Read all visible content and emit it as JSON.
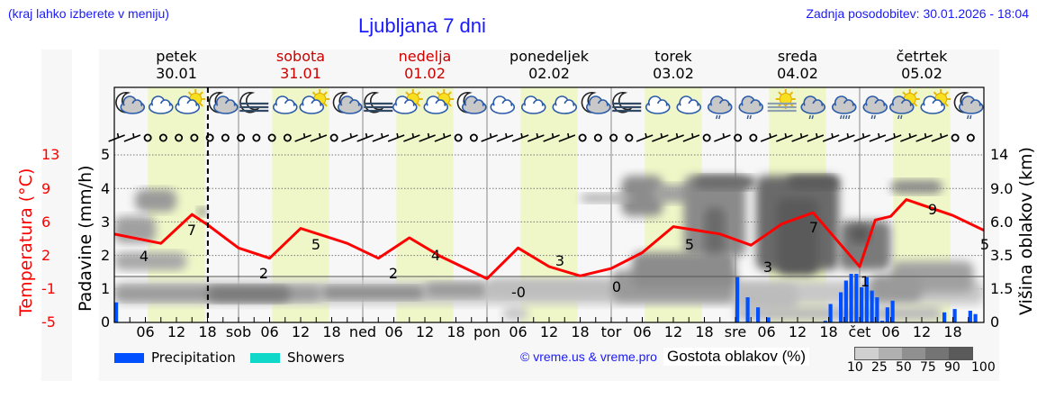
{
  "header": {
    "location_hint": "(kraj lahko izberete v meniju)",
    "title": "Ljubljana 7 dni",
    "last_update": "Zadnja posodobitev: 30.01.2026 - 18:04"
  },
  "days": [
    {
      "name": "petek",
      "date": "30.01",
      "weekend": false
    },
    {
      "name": "sobota",
      "date": "31.01",
      "weekend": true
    },
    {
      "name": "nedelja",
      "date": "01.02",
      "weekend": true
    },
    {
      "name": "ponedeljek",
      "date": "02.02",
      "weekend": false
    },
    {
      "name": "torek",
      "date": "03.02",
      "weekend": false
    },
    {
      "name": "sreda",
      "date": "04.02",
      "weekend": false
    },
    {
      "name": "četrtek",
      "date": "05.02",
      "weekend": false
    }
  ],
  "weather_icons": [
    "moon-cloud",
    "cloud",
    "sun-cloud",
    "moon-cloud",
    "moon-fog",
    "cloud",
    "sun-cloud",
    "moon-cloud",
    "moon-fog",
    "sun-cloud",
    "sun-cloud",
    "moon-cloud",
    "cloud",
    "cloud",
    "cloud",
    "moon-cloud",
    "moon-fog",
    "cloud",
    "cloud",
    "cloud-rain",
    "cloud-rain",
    "sun-fog",
    "cloud-rain",
    "cloud-heavy-rain",
    "cloud-rain",
    "sun-cloud-rain",
    "sun-cloud",
    "moon-cloud-rain"
  ],
  "axes": {
    "temperature_label": "Temperatura (°C)",
    "temperature_ticks": [
      "13",
      "9",
      "6",
      "2",
      "-1",
      "-5"
    ],
    "precip_label": "Padavine (mm/h)",
    "precip_ticks": [
      "5",
      "4",
      "3",
      "2",
      "1",
      "0"
    ],
    "cloud_height_label": "Višina oblakov (km)",
    "cloud_height_ticks": [
      "14",
      "9.0",
      "6.0",
      "3.5",
      "1.5",
      "0"
    ],
    "x_ticks": [
      "06",
      "12",
      "18",
      "sob",
      "06",
      "12",
      "18",
      "ned",
      "06",
      "12",
      "18",
      "pon",
      "06",
      "12",
      "18",
      "tor",
      "06",
      "12",
      "18",
      "sre",
      "06",
      "12",
      "18",
      "čet",
      "06",
      "12",
      "18"
    ]
  },
  "legend": {
    "precipitation": "Precipitation",
    "showers": "Showers",
    "copyright": "© vreme.us & vreme.pro",
    "cloud_density": "Gostota oblakov (%)",
    "cloud_density_ticks": [
      "10",
      "25",
      "50",
      "75",
      "90",
      "100"
    ]
  },
  "colors": {
    "precipitation": "#0050ff",
    "showers": "#10d8c8",
    "temperature": "#ff0000",
    "weekend": "#cc0000",
    "daylight": "#eff7c8",
    "link": "#1a1aff"
  },
  "chart_data": {
    "type": "line",
    "title": "Ljubljana 7 dni",
    "xlabel": "",
    "ylabel": "Temperatura (°C)",
    "x_range_hours": [
      0,
      168
    ],
    "x_start": "30.01 00:00",
    "now_marker_hour": 18.07,
    "series": [
      {
        "name": "Temperatura (°C)",
        "x_hours": [
          0,
          9,
          15,
          18,
          24,
          30,
          36,
          45,
          51,
          57,
          63,
          72,
          78,
          84,
          90,
          96,
          102,
          108,
          117,
          123,
          129,
          135,
          144,
          147,
          150,
          153,
          162,
          168
        ],
        "values": [
          4.5,
          3.5,
          6.6,
          5.5,
          3.0,
          1.9,
          5.1,
          3.5,
          1.9,
          4.1,
          2.1,
          -0.3,
          3.0,
          1.0,
          0.0,
          0.8,
          2.5,
          5.3,
          4.5,
          3.3,
          5.6,
          6.8,
          1.0,
          6.0,
          6.4,
          8.2,
          6.5,
          4.9
        ]
      },
      {
        "name": "Precipitation (mm/h)",
        "type": "bar",
        "x_hours": [
          0,
          120,
          122,
          124,
          126,
          137,
          138,
          140,
          141,
          142,
          143,
          144,
          145,
          146,
          147,
          148,
          149,
          150,
          160,
          162,
          165,
          166
        ],
        "values": [
          0.6,
          1.35,
          0.75,
          0.45,
          0.15,
          0.05,
          0.55,
          0.9,
          1.25,
          1.45,
          1.45,
          1.05,
          1.35,
          0.95,
          0.75,
          0.05,
          0.45,
          0.65,
          0.3,
          0.4,
          0.35,
          0.25
        ]
      }
    ],
    "temperature_labels": [
      {
        "hour": 9,
        "text": "4"
      },
      {
        "hour": 15,
        "text": "7"
      },
      {
        "hour": 27,
        "text": "2"
      },
      {
        "hour": 39,
        "text": "5"
      },
      {
        "hour": 51,
        "text": "2"
      },
      {
        "hour": 63,
        "text": "4"
      },
      {
        "hour": 75,
        "text": "-0"
      },
      {
        "hour": 87,
        "text": "3"
      },
      {
        "hour": 99,
        "text": "0"
      },
      {
        "hour": 111,
        "text": "5"
      },
      {
        "hour": 123,
        "text": "3"
      },
      {
        "hour": 135,
        "text": "7"
      },
      {
        "hour": 147,
        "text": "1"
      },
      {
        "hour": 159,
        "text": "9"
      },
      {
        "hour": 168,
        "text": "5"
      }
    ],
    "y_axes": {
      "precip_mm_h": [
        0,
        5
      ],
      "temperature_c": [
        -5,
        13
      ],
      "cloud_height_km": [
        0,
        14
      ]
    },
    "grid": true,
    "legend_position": "bottom"
  }
}
